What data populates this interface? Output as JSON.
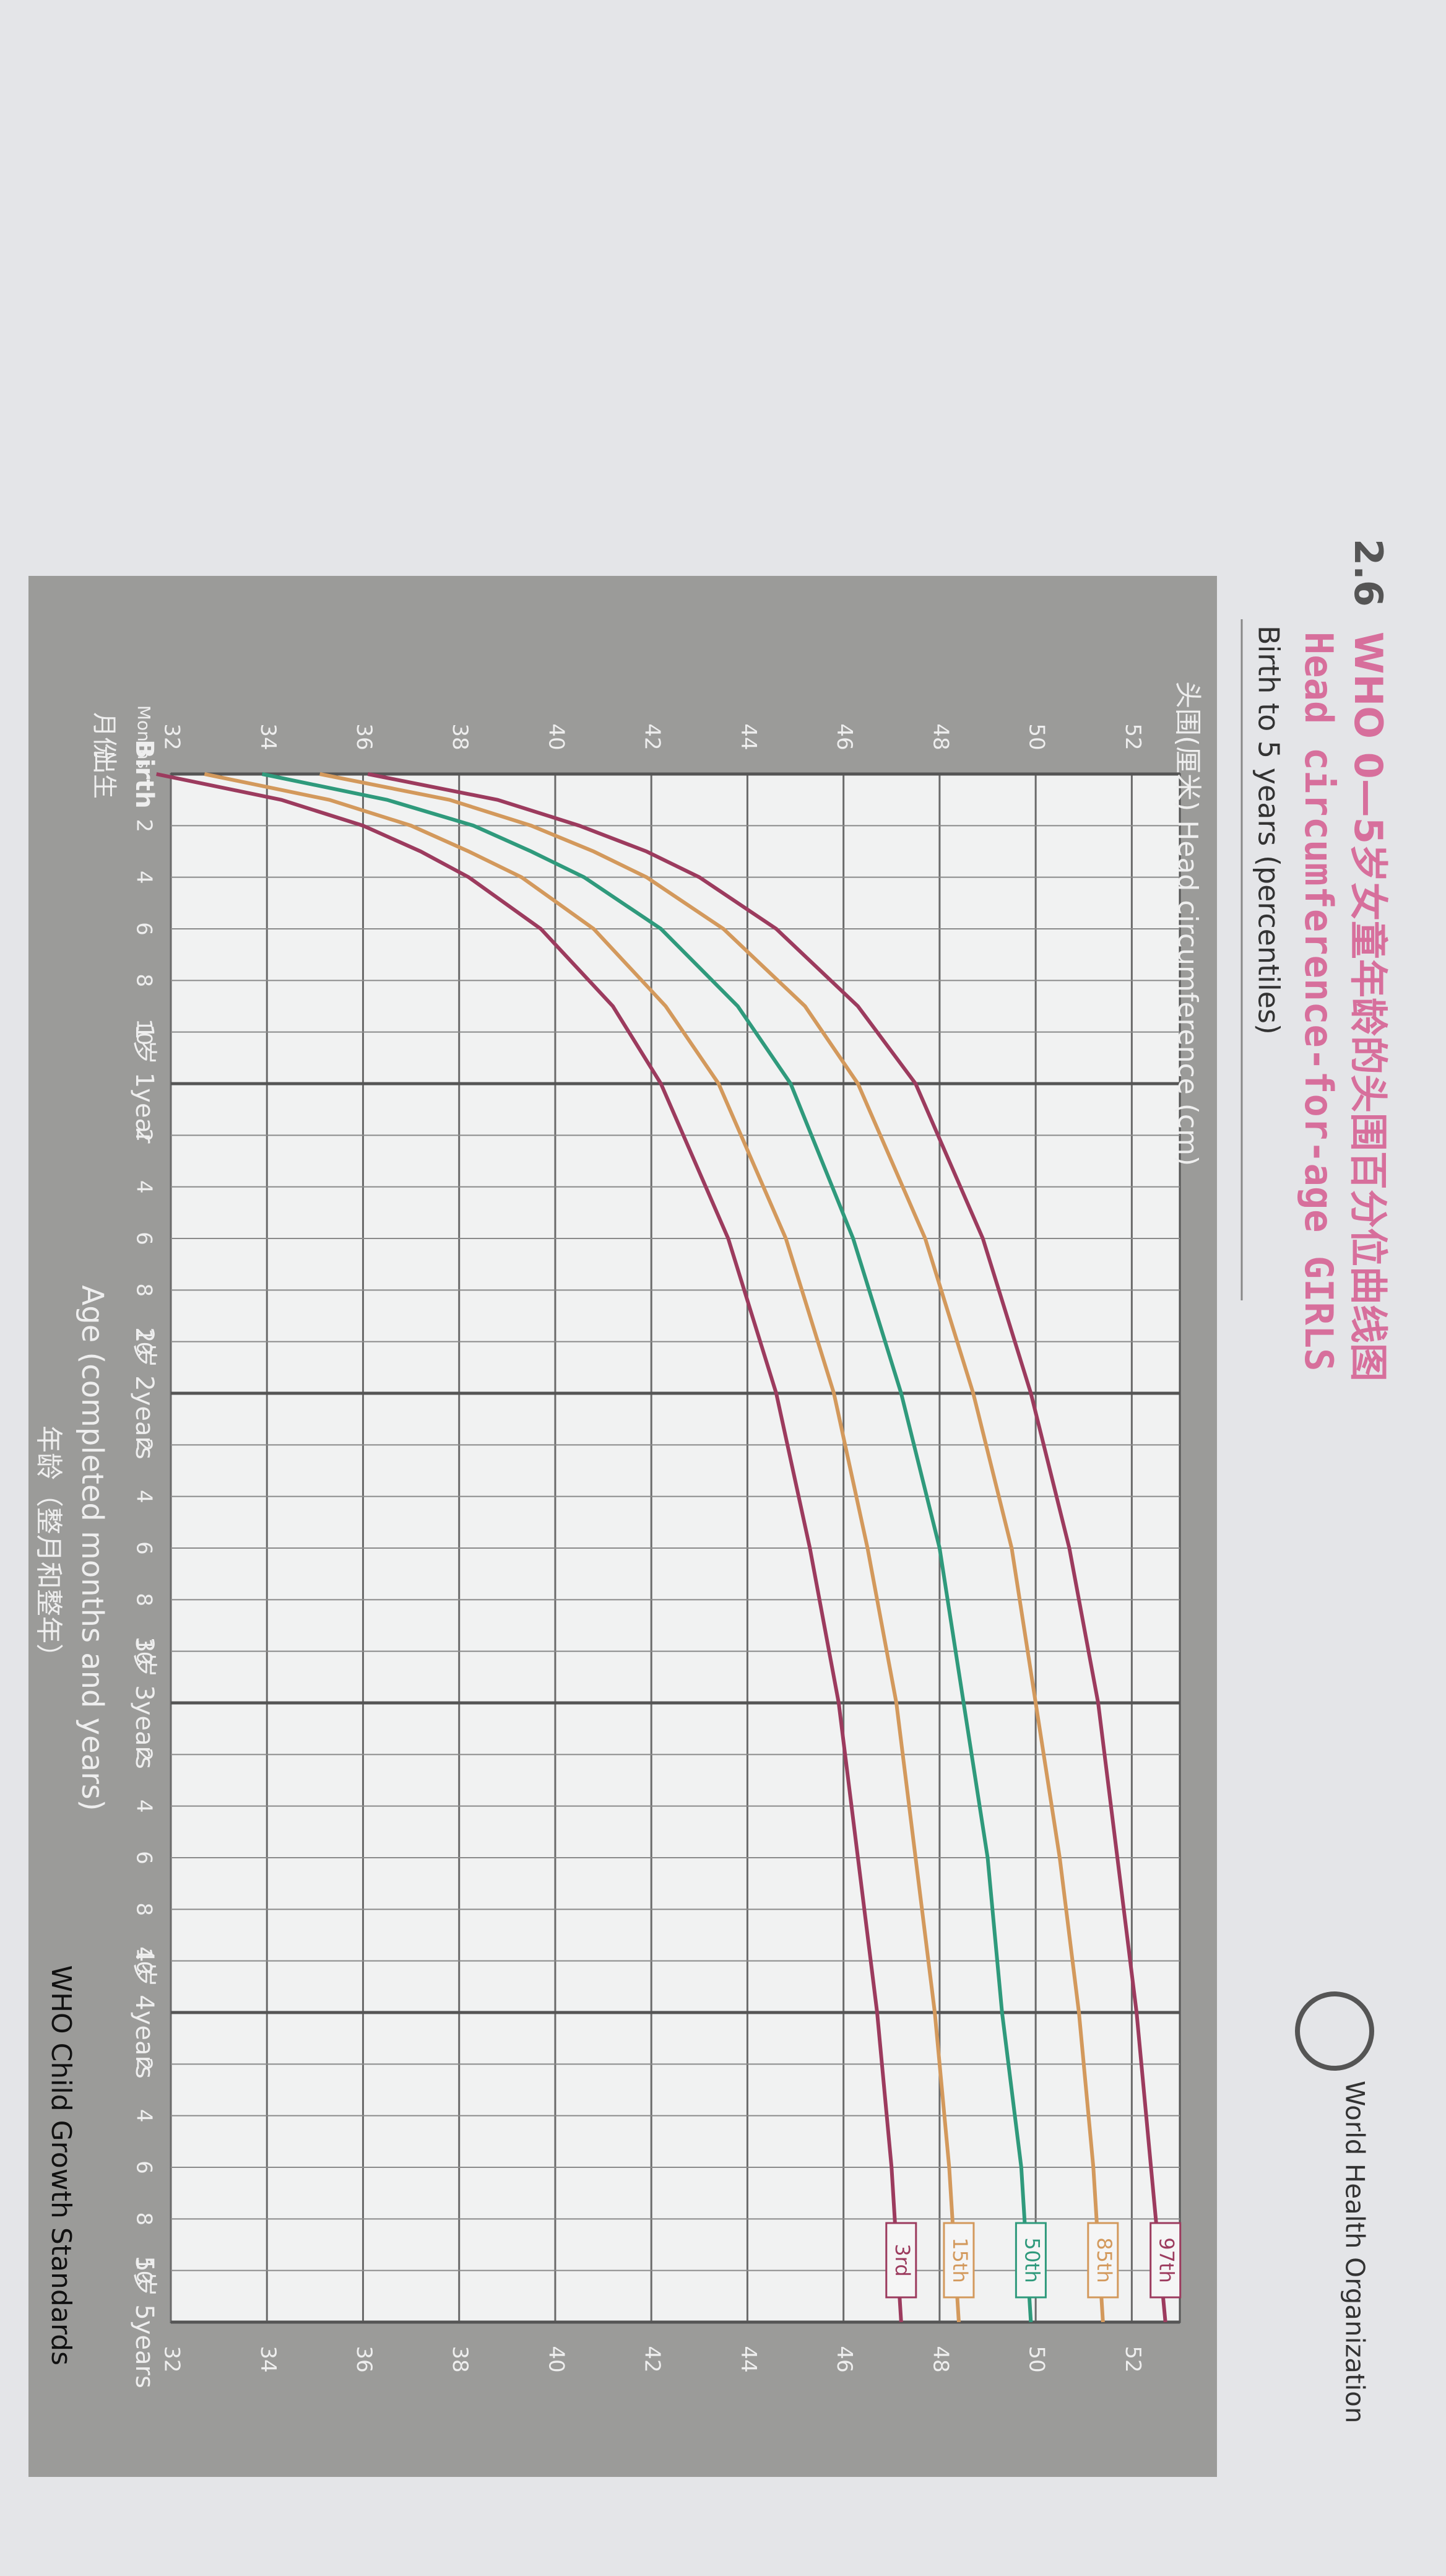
{
  "chart_data": {
    "type": "line",
    "section": "2.6",
    "title": "WHO 0—5岁女童年龄的头围百分位曲线图",
    "subtitle": "Head circumference-for-age GIRLS",
    "caption": "Birth to 5 years (percentiles)",
    "ylabel": "头围(厘米) Head circumference (cm)",
    "xlabel": "Age (completed months and years)",
    "xlabel_zh": "年龄（整月和整年）",
    "months_label": "Months",
    "months_label_zh": "月份",
    "birth_zh": "出生",
    "organization": "World Health Organization",
    "footer": "WHO Child Growth Standards",
    "x": [
      0,
      1,
      2,
      3,
      4,
      6,
      9,
      12,
      18,
      24,
      30,
      36,
      42,
      48,
      54,
      60
    ],
    "series": [
      {
        "name": "97th",
        "color": "#9c3b5e",
        "values": [
          36.1,
          38.8,
          40.5,
          41.9,
          43.0,
          44.6,
          46.3,
          47.5,
          48.9,
          49.9,
          50.7,
          51.3,
          51.7,
          52.1,
          52.4,
          52.7
        ]
      },
      {
        "name": "85th",
        "color": "#d3995c",
        "values": [
          35.1,
          37.8,
          39.5,
          40.8,
          41.9,
          43.5,
          45.2,
          46.3,
          47.7,
          48.7,
          49.5,
          50.0,
          50.5,
          50.9,
          51.2,
          51.4
        ]
      },
      {
        "name": "50th",
        "color": "#2f9a7c",
        "values": [
          33.9,
          36.5,
          38.3,
          39.5,
          40.6,
          42.2,
          43.8,
          44.9,
          46.2,
          47.2,
          48.0,
          48.5,
          49.0,
          49.3,
          49.7,
          49.9
        ]
      },
      {
        "name": "15th",
        "color": "#d3995c",
        "values": [
          32.7,
          35.3,
          37.0,
          38.2,
          39.3,
          40.8,
          42.3,
          43.4,
          44.8,
          45.8,
          46.5,
          47.1,
          47.5,
          47.9,
          48.2,
          48.4
        ]
      },
      {
        "name": "3rd",
        "color": "#9c3b5e",
        "values": [
          31.7,
          34.3,
          36.0,
          37.2,
          38.2,
          39.7,
          41.2,
          42.2,
          43.6,
          44.6,
          45.3,
          45.9,
          46.3,
          46.7,
          47.0,
          47.2
        ]
      }
    ],
    "xlim": [
      0,
      60
    ],
    "xticks": [
      {
        "value": 0,
        "label": "Birth"
      },
      {
        "value": 2,
        "label": "2"
      },
      {
        "value": 4,
        "label": "4"
      },
      {
        "value": 6,
        "label": "6"
      },
      {
        "value": 8,
        "label": "8"
      },
      {
        "value": 10,
        "label": "10"
      },
      {
        "value": 12,
        "label": "1岁 1year"
      },
      {
        "value": 14,
        "label": "2"
      },
      {
        "value": 16,
        "label": "4"
      },
      {
        "value": 18,
        "label": "6"
      },
      {
        "value": 20,
        "label": "8"
      },
      {
        "value": 22,
        "label": "10"
      },
      {
        "value": 24,
        "label": "2岁 2years"
      },
      {
        "value": 26,
        "label": "2"
      },
      {
        "value": 28,
        "label": "4"
      },
      {
        "value": 30,
        "label": "6"
      },
      {
        "value": 32,
        "label": "8"
      },
      {
        "value": 34,
        "label": "10"
      },
      {
        "value": 36,
        "label": "3岁 3years"
      },
      {
        "value": 38,
        "label": "2"
      },
      {
        "value": 40,
        "label": "4"
      },
      {
        "value": 42,
        "label": "6"
      },
      {
        "value": 44,
        "label": "8"
      },
      {
        "value": 46,
        "label": "10"
      },
      {
        "value": 48,
        "label": "4岁 4years"
      },
      {
        "value": 50,
        "label": "2"
      },
      {
        "value": 52,
        "label": "4"
      },
      {
        "value": 54,
        "label": "6"
      },
      {
        "value": 56,
        "label": "8"
      },
      {
        "value": 58,
        "label": "10"
      },
      {
        "value": 60,
        "label": "5岁 5years"
      }
    ],
    "ylim": [
      32,
      53
    ],
    "yticks": [
      32,
      34,
      36,
      38,
      40,
      42,
      44,
      46,
      48,
      50,
      52
    ],
    "grid": true
  }
}
